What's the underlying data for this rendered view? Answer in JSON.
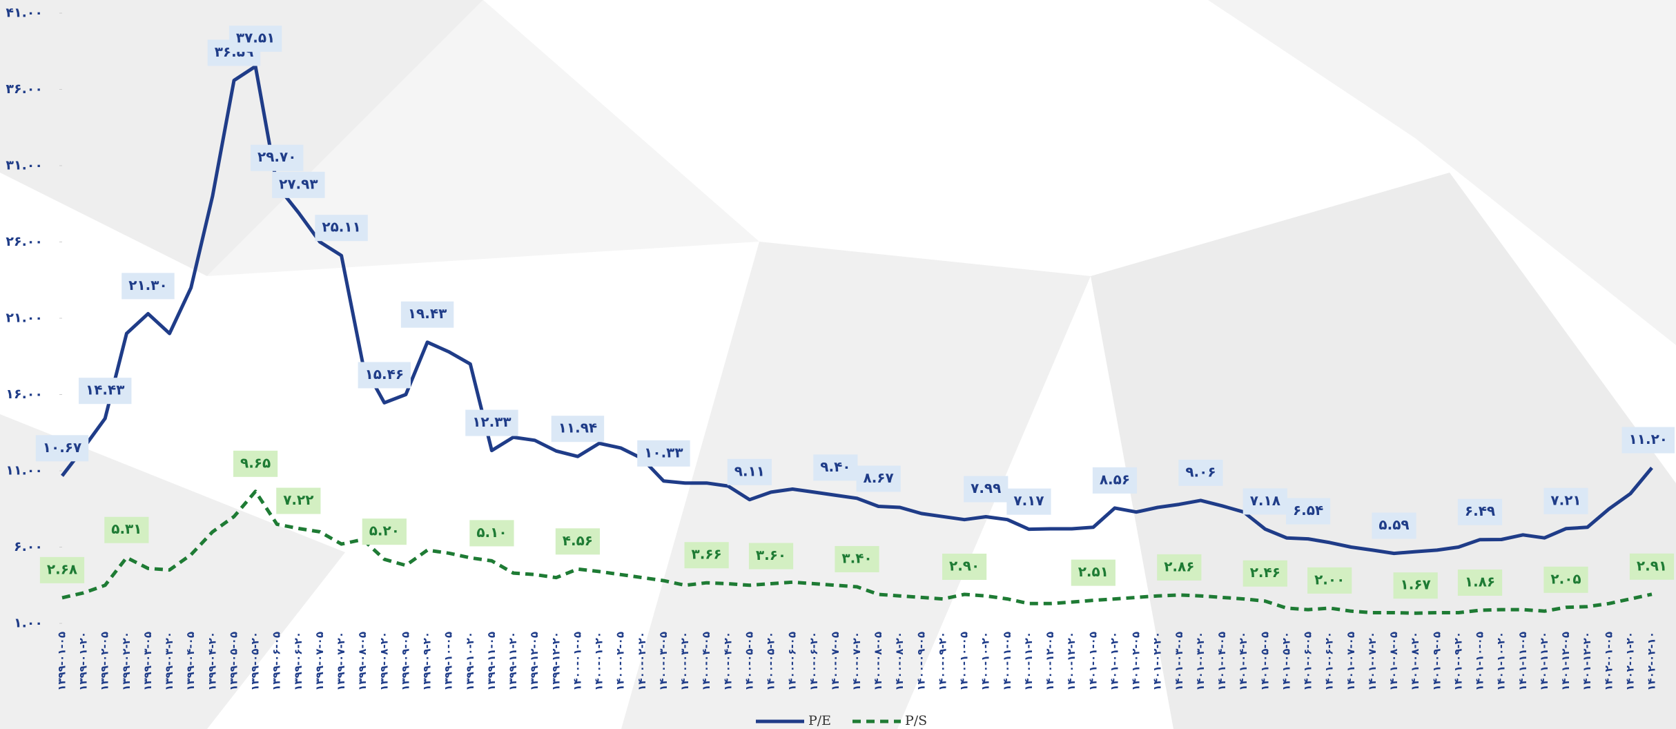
{
  "chart_data": {
    "type": "line",
    "categories": [
      "۱۳۹۹-۰۱-۰۵",
      "۱۳۹۹-۰۱-۲۰",
      "۱۳۹۹-۰۲-۰۵",
      "۱۳۹۹-۰۲-۲۰",
      "۱۳۹۹-۰۳-۰۵",
      "۱۳۹۹-۰۳-۲۰",
      "۱۳۹۹-۰۴-۰۵",
      "۱۳۹۹-۰۴-۲۰",
      "۱۳۹۹-۰۵-۰۵",
      "۱۳۹۹-۰۵-۲۰",
      "۱۳۹۹-۰۶-۰۵",
      "۱۳۹۹-۰۶-۲۰",
      "۱۳۹۹-۰۷-۰۵",
      "۱۳۹۹-۰۷-۲۰",
      "۱۳۹۹-۰۸-۰۵",
      "۱۳۹۹-۰۸-۲۰",
      "۱۳۹۹-۰۹-۰۵",
      "۱۳۹۹-۰۹-۲۰",
      "۱۳۹۹-۱۰-۰۵",
      "۱۳۹۹-۱۰-۲۰",
      "۱۳۹۹-۱۱-۰۵",
      "۱۳۹۹-۱۱-۲۰",
      "۱۳۹۹-۱۲-۰۵",
      "۱۳۹۹-۱۲-۲۰",
      "۱۴۰۰-۰۱-۰۵",
      "۱۴۰۰-۰۱-۲۰",
      "۱۴۰۰-۰۲-۰۵",
      "۱۴۰۰-۰۲-۲۰",
      "۱۴۰۰-۰۳-۰۵",
      "۱۴۰۰-۰۳-۲۰",
      "۱۴۰۰-۰۴-۰۵",
      "۱۴۰۰-۰۴-۲۰",
      "۱۴۰۰-۰۵-۰۵",
      "۱۴۰۰-۰۵-۲۰",
      "۱۴۰۰-۰۶-۰۵",
      "۱۴۰۰-۰۶-۲۰",
      "۱۴۰۰-۰۷-۰۵",
      "۱۴۰۰-۰۷-۲۰",
      "۱۴۰۰-۰۸-۰۵",
      "۱۴۰۰-۰۸-۲۰",
      "۱۴۰۰-۰۹-۰۵",
      "۱۴۰۰-۰۹-۲۰",
      "۱۴۰۰-۱۰-۰۵",
      "۱۴۰۰-۱۰-۲۰",
      "۱۴۰۰-۱۱-۰۵",
      "۱۴۰۰-۱۱-۲۰",
      "۱۴۰۰-۱۲-۰۵",
      "۱۴۰۰-۱۲-۲۰",
      "۱۴۰۱-۰۱-۰۵",
      "۱۴۰۱-۰۱-۲۰",
      "۱۴۰۱-۰۲-۰۵",
      "۱۴۰۱-۰۲-۲۰",
      "۱۴۰۱-۰۳-۰۵",
      "۱۴۰۱-۰۳-۲۰",
      "۱۴۰۱-۰۴-۰۵",
      "۱۴۰۱-۰۴-۲۰",
      "۱۴۰۱-۰۵-۰۵",
      "۱۴۰۱-۰۵-۲۰",
      "۱۴۰۱-۰۶-۰۵",
      "۱۴۰۱-۰۶-۲۰",
      "۱۴۰۱-۰۷-۰۵",
      "۱۴۰۱-۰۷-۲۰",
      "۱۴۰۱-۰۸-۰۵",
      "۱۴۰۱-۰۸-۲۰",
      "۱۴۰۱-۰۹-۰۵",
      "۱۴۰۱-۰۹-۲۰",
      "۱۴۰۱-۱۰-۰۵",
      "۱۴۰۱-۱۰-۲۰",
      "۱۴۰۱-۱۱-۰۵",
      "۱۴۰۱-۱۱-۲۰",
      "۱۴۰۱-۱۲-۰۵",
      "۱۴۰۱-۱۲-۲۰",
      "۱۴۰۲-۰۱-۰۵",
      "۱۴۰۲-۰۱-۲۰",
      "۱۴۰۲-۰۲-۱۰"
    ],
    "series": [
      {
        "name": "P/E",
        "color": "#1f3c88",
        "dash": false,
        "values": [
          10.67,
          12.5,
          14.43,
          20,
          21.3,
          20,
          23,
          29,
          36.59,
          37.51,
          29.7,
          27.93,
          26,
          25.11,
          18,
          15.46,
          16,
          19.43,
          18.8,
          18,
          12.33,
          13.2,
          13,
          12.3,
          11.94,
          12.8,
          12.5,
          11.8,
          10.33,
          10.2,
          10.2,
          10,
          9.11,
          9.6,
          9.8,
          9.6,
          9.4,
          9.2,
          8.67,
          8.6,
          8.2,
          8,
          7.8,
          7.99,
          7.8,
          7.17,
          7.2,
          7.2,
          7.3,
          8.56,
          8.3,
          8.6,
          8.8,
          9.06,
          8.7,
          8.3,
          7.18,
          6.6,
          6.54,
          6.3,
          6,
          5.8,
          5.59,
          5.7,
          5.8,
          6,
          6.49,
          6.5,
          6.8,
          6.6,
          7.21,
          7.3,
          8.5,
          9.5,
          11.2
        ],
        "value_labels": [
          "۱۰.۶۷",
          null,
          "۱۴.۴۳",
          null,
          "۲۱.۳۰",
          null,
          null,
          null,
          "۳۶.۵۹",
          "۳۷.۵۱",
          "۲۹.۷۰",
          "۲۷.۹۳",
          null,
          "۲۵.۱۱",
          null,
          "۱۵.۴۶",
          null,
          "۱۹.۴۳",
          null,
          null,
          "۱۲.۳۳",
          null,
          null,
          null,
          "۱۱.۹۴",
          null,
          null,
          null,
          "۱۰.۳۳",
          null,
          null,
          null,
          "۹.۱۱",
          null,
          null,
          null,
          "۹.۴۰",
          null,
          "۸.۶۷",
          null,
          null,
          null,
          null,
          "۷.۹۹",
          null,
          "۷.۱۷",
          null,
          null,
          null,
          "۸.۵۶",
          null,
          null,
          null,
          "۹.۰۶",
          null,
          null,
          "۷.۱۸",
          null,
          "۶.۵۴",
          null,
          null,
          null,
          "۵.۵۹",
          null,
          null,
          null,
          "۶.۴۹",
          null,
          null,
          null,
          "۷.۲۱",
          null,
          null,
          null,
          "۱۱.۲۰"
        ]
      },
      {
        "name": "P/S",
        "color": "#1e7b34",
        "dash": true,
        "values": [
          2.68,
          3,
          3.5,
          5.31,
          4.6,
          4.5,
          5.5,
          7,
          8,
          9.65,
          7.5,
          7.22,
          7,
          6.2,
          6.5,
          5.2,
          4.8,
          5.8,
          5.6,
          5.3,
          5.1,
          4.3,
          4.2,
          4,
          4.56,
          4.4,
          4.2,
          4,
          3.8,
          3.5,
          3.66,
          3.6,
          3.5,
          3.6,
          3.7,
          3.6,
          3.5,
          3.4,
          2.9,
          2.8,
          2.7,
          2.6,
          2.9,
          2.8,
          2.6,
          2.3,
          2.3,
          2.4,
          2.51,
          2.6,
          2.7,
          2.8,
          2.86,
          2.8,
          2.7,
          2.6,
          2.46,
          2,
          1.9,
          2,
          1.8,
          1.7,
          1.7,
          1.67,
          1.7,
          1.7,
          1.86,
          1.9,
          1.9,
          1.8,
          2.05,
          2.1,
          2.3,
          2.6,
          2.91
        ],
        "value_labels": [
          "۲.۶۸",
          null,
          null,
          "۵.۳۱",
          null,
          null,
          null,
          null,
          null,
          "۹.۶۵",
          null,
          "۷.۲۲",
          null,
          null,
          null,
          "۵.۲۰",
          null,
          null,
          null,
          null,
          "۵.۱۰",
          null,
          null,
          null,
          "۴.۵۶",
          null,
          null,
          null,
          null,
          null,
          "۳.۶۶",
          null,
          null,
          "۳.۶۰",
          null,
          null,
          null,
          "۳.۴۰",
          null,
          null,
          null,
          null,
          "۲.۹۰",
          null,
          null,
          null,
          null,
          null,
          "۲.۵۱",
          null,
          null,
          null,
          "۲.۸۶",
          null,
          null,
          null,
          "۲.۴۶",
          null,
          null,
          "۲.۰۰",
          null,
          null,
          null,
          "۱.۶۷",
          null,
          null,
          "۱.۸۶",
          null,
          null,
          null,
          "۲.۰۵",
          null,
          null,
          null,
          "۲.۹۱"
        ]
      }
    ],
    "ylim": [
      1,
      41
    ],
    "yticks": [
      {
        "value": 1,
        "label": "۱.۰۰"
      },
      {
        "value": 6,
        "label": "۶.۰۰"
      },
      {
        "value": 11,
        "label": "۱۱.۰۰"
      },
      {
        "value": 16,
        "label": "۱۶.۰۰"
      },
      {
        "value": 21,
        "label": "۲۱.۰۰"
      },
      {
        "value": 26,
        "label": "۲۶.۰۰"
      },
      {
        "value": 31,
        "label": "۳۱.۰۰"
      },
      {
        "value": 36,
        "label": "۳۶.۰۰"
      },
      {
        "value": 41,
        "label": "۴۱.۰۰"
      }
    ],
    "legend": "bottom"
  }
}
